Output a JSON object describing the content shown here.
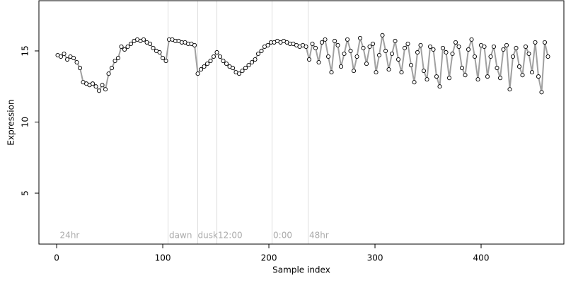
{
  "chart_data": {
    "type": "scatter",
    "xlabel": "Sample index",
    "ylabel": "Expression",
    "xlim": [
      -16.7,
      478
    ],
    "ylim": [
      1.42,
      18.53
    ],
    "xticks": [
      0,
      100,
      200,
      300,
      400
    ],
    "yticks": [
      5,
      10,
      15
    ],
    "line_color": "#a0a0a0",
    "point_color": "#ffffff",
    "vline_color": "#dddddd",
    "vlines": [
      105,
      133,
      151,
      203,
      237
    ],
    "annotations": [
      {
        "x": 3,
        "label": "24hr"
      },
      {
        "x": 106,
        "label": "dawn"
      },
      {
        "x": 133,
        "label": "dusk"
      },
      {
        "x": 152,
        "label": "12:00"
      },
      {
        "x": 204,
        "label": "0:00"
      },
      {
        "x": 238,
        "label": "48hr"
      }
    ],
    "x": [
      1,
      4,
      7,
      10,
      13,
      16,
      19,
      22,
      25,
      28,
      31,
      34,
      37,
      40,
      43,
      46,
      49,
      52,
      55,
      58,
      61,
      64,
      67,
      70,
      73,
      76,
      79,
      82,
      85,
      88,
      91,
      94,
      97,
      100,
      103,
      106,
      109,
      112,
      115,
      118,
      121,
      124,
      127,
      130,
      133,
      136,
      139,
      142,
      145,
      148,
      151,
      154,
      157,
      160,
      163,
      166,
      169,
      172,
      175,
      178,
      181,
      184,
      187,
      190,
      193,
      196,
      199,
      202,
      205,
      208,
      211,
      214,
      217,
      220,
      223,
      226,
      229,
      232,
      235,
      238,
      241,
      244,
      247,
      250,
      253,
      256,
      259,
      262,
      265,
      268,
      271,
      274,
      277,
      280,
      283,
      286,
      289,
      292,
      295,
      298,
      301,
      304,
      307,
      310,
      313,
      316,
      319,
      322,
      325,
      328,
      331,
      334,
      337,
      340,
      343,
      346,
      349,
      352,
      355,
      358,
      361,
      364,
      367,
      370,
      373,
      376,
      379,
      382,
      385,
      388,
      391,
      394,
      397,
      400,
      403,
      406,
      409,
      412,
      415,
      418,
      421,
      424,
      427,
      430,
      433,
      436,
      439,
      442,
      445,
      448,
      451,
      454,
      457,
      460,
      463
    ],
    "values": [
      14.7,
      14.6,
      14.8,
      14.4,
      14.6,
      14.5,
      14.2,
      13.8,
      12.8,
      12.7,
      12.6,
      12.7,
      12.5,
      12.2,
      12.6,
      12.3,
      13.4,
      13.8,
      14.3,
      14.5,
      15.3,
      15.1,
      15.3,
      15.5,
      15.7,
      15.8,
      15.7,
      15.8,
      15.6,
      15.5,
      15.2,
      15.0,
      14.9,
      14.5,
      14.3,
      15.8,
      15.8,
      15.7,
      15.7,
      15.6,
      15.6,
      15.5,
      15.5,
      15.4,
      13.4,
      13.7,
      13.9,
      14.1,
      14.3,
      14.6,
      14.9,
      14.6,
      14.3,
      14.1,
      13.9,
      13.8,
      13.5,
      13.4,
      13.6,
      13.8,
      14.0,
      14.2,
      14.4,
      14.8,
      15.0,
      15.3,
      15.4,
      15.6,
      15.6,
      15.7,
      15.6,
      15.7,
      15.6,
      15.5,
      15.5,
      15.4,
      15.3,
      15.4,
      15.3,
      14.4,
      15.5,
      15.2,
      14.2,
      15.6,
      15.8,
      14.6,
      13.5,
      15.7,
      15.4,
      13.9,
      14.8,
      15.8,
      15.0,
      13.6,
      14.6,
      15.9,
      15.2,
      14.1,
      15.3,
      15.5,
      13.5,
      14.7,
      16.1,
      15.0,
      13.7,
      14.8,
      15.7,
      14.4,
      13.5,
      15.2,
      15.5,
      14.0,
      12.8,
      14.9,
      15.4,
      13.6,
      13.0,
      15.3,
      15.1,
      13.2,
      12.5,
      15.2,
      14.9,
      13.1,
      14.8,
      15.6,
      15.3,
      13.8,
      13.3,
      15.1,
      15.8,
      14.6,
      13.0,
      15.4,
      15.3,
      13.2,
      14.6,
      15.3,
      13.8,
      13.1,
      15.1,
      15.4,
      12.3,
      14.6,
      15.2,
      13.9,
      13.3,
      15.3,
      14.8,
      13.5,
      15.6,
      13.2,
      12.1,
      15.6,
      14.6
    ]
  }
}
